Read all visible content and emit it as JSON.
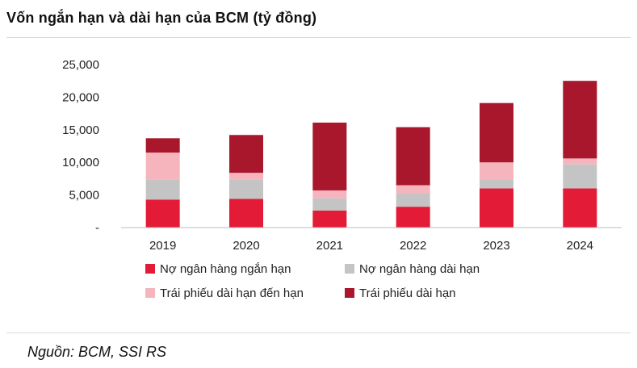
{
  "header": {
    "title": "Vốn ngắn hạn và dài hạn của BCM (tỷ đồng)"
  },
  "footer": {
    "source": "Nguồn: BCM, SSI RS"
  },
  "chart_data": {
    "type": "bar",
    "stacked": true,
    "title": "Vốn ngắn hạn và dài hạn của BCM (tỷ đồng)",
    "xlabel": "",
    "ylabel": "",
    "ylim": [
      0,
      25000
    ],
    "yticks": [
      0,
      5000,
      10000,
      15000,
      20000,
      25000
    ],
    "ytick_labels": [
      "-",
      "5,000",
      "10,000",
      "15,000",
      "20,000",
      "25,000"
    ],
    "grid": false,
    "legend_position": "bottom",
    "categories": [
      "2019",
      "2020",
      "2021",
      "2022",
      "2023",
      "2024"
    ],
    "series": [
      {
        "name": "Nợ ngân hàng ngắn hạn",
        "color": "#e31b37",
        "values": [
          4300,
          4400,
          2600,
          3200,
          6000,
          6000
        ]
      },
      {
        "name": "Nợ ngân hàng dài hạn",
        "color": "#c4c4c4",
        "values": [
          3100,
          3000,
          1900,
          2000,
          1300,
          3700
        ]
      },
      {
        "name": "Trái phiếu dài hạn đến hạn",
        "color": "#f6b5bd",
        "values": [
          4100,
          1000,
          1200,
          1300,
          2700,
          900
        ]
      },
      {
        "name": "Trái phiếu dài hạn",
        "color": "#a8172b",
        "values": [
          2200,
          5800,
          10400,
          8900,
          9100,
          11900
        ]
      }
    ]
  }
}
